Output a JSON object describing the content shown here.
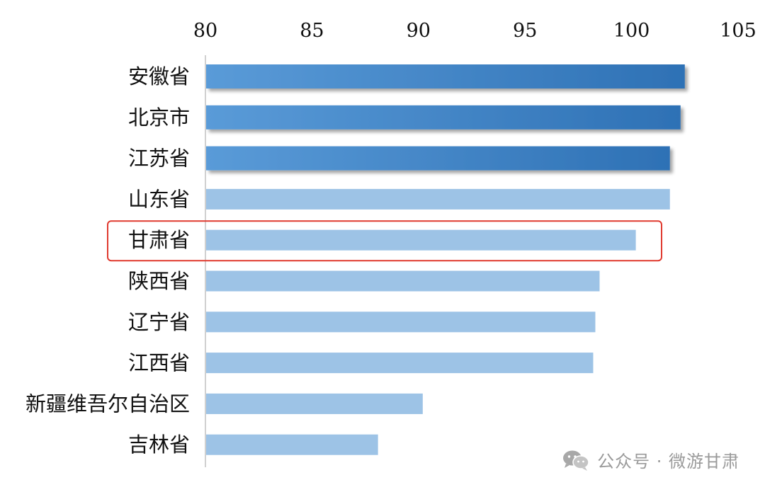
{
  "chart_data": {
    "type": "bar",
    "orientation": "horizontal",
    "categories": [
      "安徽省",
      "北京市",
      "江苏省",
      "山东省",
      "甘肃省",
      "陕西省",
      "辽宁省",
      "江西省",
      "新疆维吾尔自治区",
      "吉林省"
    ],
    "values": [
      102.5,
      102.3,
      101.8,
      101.8,
      100.2,
      98.5,
      98.3,
      98.2,
      90.2,
      88.1
    ],
    "xlim": [
      80,
      105
    ],
    "xticks": [
      "80",
      "85",
      "90",
      "95",
      "100",
      "105"
    ],
    "title": "",
    "xlabel": "",
    "ylabel": "",
    "grid": false,
    "highlighted_category": "甘肃省",
    "top_ranked_count": 3,
    "colors": {
      "top_bar_start": "#5a9bd8",
      "top_bar_end": "#2e71b5",
      "regular_bar": "#9dc3e6",
      "highlight_box": "#e03a2f",
      "axis_line": "#d0d0d0"
    }
  },
  "watermark": {
    "text": "公众号 · 微游甘肃",
    "icon": "wechat-icon"
  }
}
